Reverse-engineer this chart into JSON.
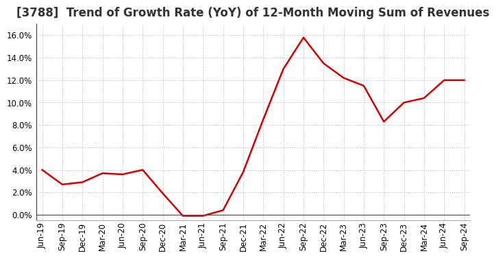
{
  "title": "[3788]  Trend of Growth Rate (YoY) of 12-Month Moving Sum of Revenues",
  "x_labels": [
    "Jun-19",
    "Sep-19",
    "Dec-19",
    "Mar-20",
    "Jun-20",
    "Sep-20",
    "Dec-20",
    "Mar-21",
    "Jun-21",
    "Sep-21",
    "Dec-21",
    "Mar-22",
    "Jun-22",
    "Sep-22",
    "Dec-22",
    "Mar-23",
    "Jun-23",
    "Sep-23",
    "Dec-23",
    "Mar-24",
    "Jun-24",
    "Sep-24"
  ],
  "y_values": [
    0.04,
    0.027,
    0.029,
    0.037,
    0.036,
    0.04,
    0.019,
    -0.001,
    -0.001,
    0.004,
    0.038,
    0.085,
    0.13,
    0.158,
    0.135,
    0.122,
    0.115,
    0.083,
    0.1,
    0.104,
    0.12,
    0.12
  ],
  "line_color": "#cc0000",
  "line_width": 1.8,
  "ylim": [
    -0.005,
    0.17
  ],
  "yticks": [
    0.0,
    0.02,
    0.04,
    0.06,
    0.08,
    0.1,
    0.12,
    0.14,
    0.16
  ],
  "background_color": "#ffffff",
  "plot_bg_color": "#ffffff",
  "grid_color": "#aaaaaa",
  "title_fontsize": 12,
  "tick_fontsize": 8.5
}
